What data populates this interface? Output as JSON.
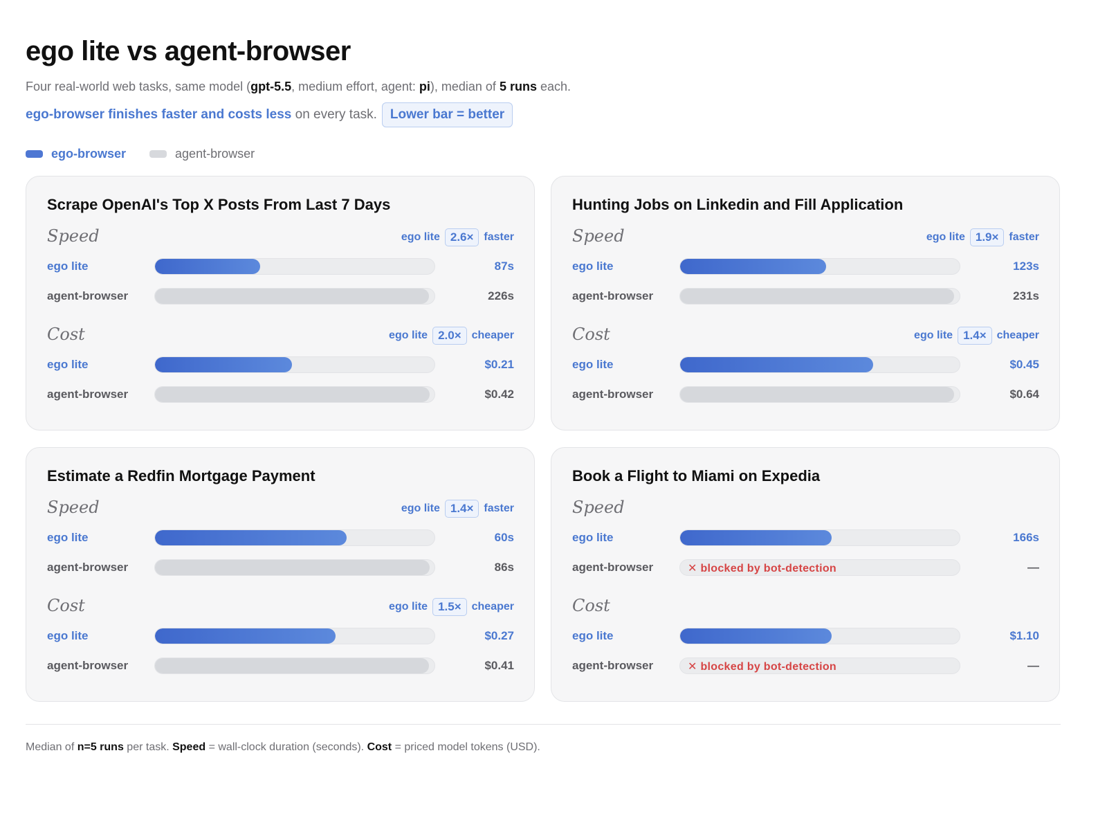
{
  "header": {
    "title": "ego lite vs agent-browser",
    "subtitle_parts": [
      "Four real-world web tasks, same model (",
      "gpt-5.5",
      ", medium effort, agent: ",
      "pi",
      "), median of ",
      "5 runs",
      " each."
    ],
    "tagline_accent": "ego-browser finishes faster and costs less",
    "tagline_rest": " on every task.",
    "tagline_pill": "Lower bar = better"
  },
  "legend": {
    "ego_label": "ego-browser",
    "ab_label": "agent-browser"
  },
  "colors": {
    "ego": "#4e77d3",
    "agent_browser": "#d7d9dd",
    "blocked": "#d64545"
  },
  "chart_data": [
    {
      "type": "bar",
      "title": "Scrape OpenAI's Top X Posts From Last 7 Days",
      "speed": {
        "label": "Speed",
        "unit": "s",
        "max": 232,
        "summary": {
          "prefix": "ego lite",
          "multiplier": "2.6×",
          "suffix": "faster"
        },
        "series": [
          {
            "name": "ego lite",
            "value": 87,
            "display": "87s",
            "blocked": false
          },
          {
            "name": "agent-browser",
            "value": 226,
            "display": "226s",
            "blocked": false
          }
        ]
      },
      "cost": {
        "label": "Cost",
        "unit": "USD",
        "max": 0.43,
        "summary": {
          "prefix": "ego lite",
          "multiplier": "2.0×",
          "suffix": "cheaper"
        },
        "series": [
          {
            "name": "ego lite",
            "value": 0.21,
            "display": "$0.21",
            "blocked": false
          },
          {
            "name": "agent-browser",
            "value": 0.42,
            "display": "$0.42",
            "blocked": false
          }
        ]
      }
    },
    {
      "type": "bar",
      "title": "Hunting Jobs on Linkedin and Fill Application",
      "speed": {
        "label": "Speed",
        "unit": "s",
        "max": 237,
        "summary": {
          "prefix": "ego lite",
          "multiplier": "1.9×",
          "suffix": "faster"
        },
        "series": [
          {
            "name": "ego lite",
            "value": 123,
            "display": "123s",
            "blocked": false
          },
          {
            "name": "agent-browser",
            "value": 231,
            "display": "231s",
            "blocked": false
          }
        ]
      },
      "cost": {
        "label": "Cost",
        "unit": "USD",
        "max": 0.656,
        "summary": {
          "prefix": "ego lite",
          "multiplier": "1.4×",
          "suffix": "cheaper"
        },
        "series": [
          {
            "name": "ego lite",
            "value": 0.45,
            "display": "$0.45",
            "blocked": false
          },
          {
            "name": "agent-browser",
            "value": 0.64,
            "display": "$0.64",
            "blocked": false
          }
        ]
      }
    },
    {
      "type": "bar",
      "title": "Estimate a Redfin Mortgage Payment",
      "speed": {
        "label": "Speed",
        "unit": "s",
        "max": 88,
        "summary": {
          "prefix": "ego lite",
          "multiplier": "1.4×",
          "suffix": "faster"
        },
        "series": [
          {
            "name": "ego lite",
            "value": 60,
            "display": "60s",
            "blocked": false
          },
          {
            "name": "agent-browser",
            "value": 86,
            "display": "86s",
            "blocked": false
          }
        ]
      },
      "cost": {
        "label": "Cost",
        "unit": "USD",
        "max": 0.42,
        "summary": {
          "prefix": "ego lite",
          "multiplier": "1.5×",
          "suffix": "cheaper"
        },
        "series": [
          {
            "name": "ego lite",
            "value": 0.27,
            "display": "$0.27",
            "blocked": false
          },
          {
            "name": "agent-browser",
            "value": 0.41,
            "display": "$0.41",
            "blocked": false
          }
        ]
      }
    },
    {
      "type": "bar",
      "title": "Book a Flight to Miami on Expedia",
      "speed": {
        "label": "Speed",
        "unit": "s",
        "max": 308,
        "summary": null,
        "series": [
          {
            "name": "ego lite",
            "value": 166,
            "display": "166s",
            "blocked": false
          },
          {
            "name": "agent-browser",
            "value": null,
            "display": "—",
            "blocked": true,
            "blocked_text": "✕ blocked by bot-detection"
          }
        ]
      },
      "cost": {
        "label": "Cost",
        "unit": "USD",
        "max": 2.04,
        "summary": null,
        "series": [
          {
            "name": "ego lite",
            "value": 1.1,
            "display": "$1.10",
            "blocked": false
          },
          {
            "name": "agent-browser",
            "value": null,
            "display": "—",
            "blocked": true,
            "blocked_text": "✕ blocked by bot-detection"
          }
        ]
      }
    }
  ],
  "footnote_parts": [
    "Median of ",
    "n=5 runs",
    " per task. ",
    "Speed",
    " = wall-clock duration (seconds). ",
    "Cost",
    " = priced model tokens (USD)."
  ]
}
